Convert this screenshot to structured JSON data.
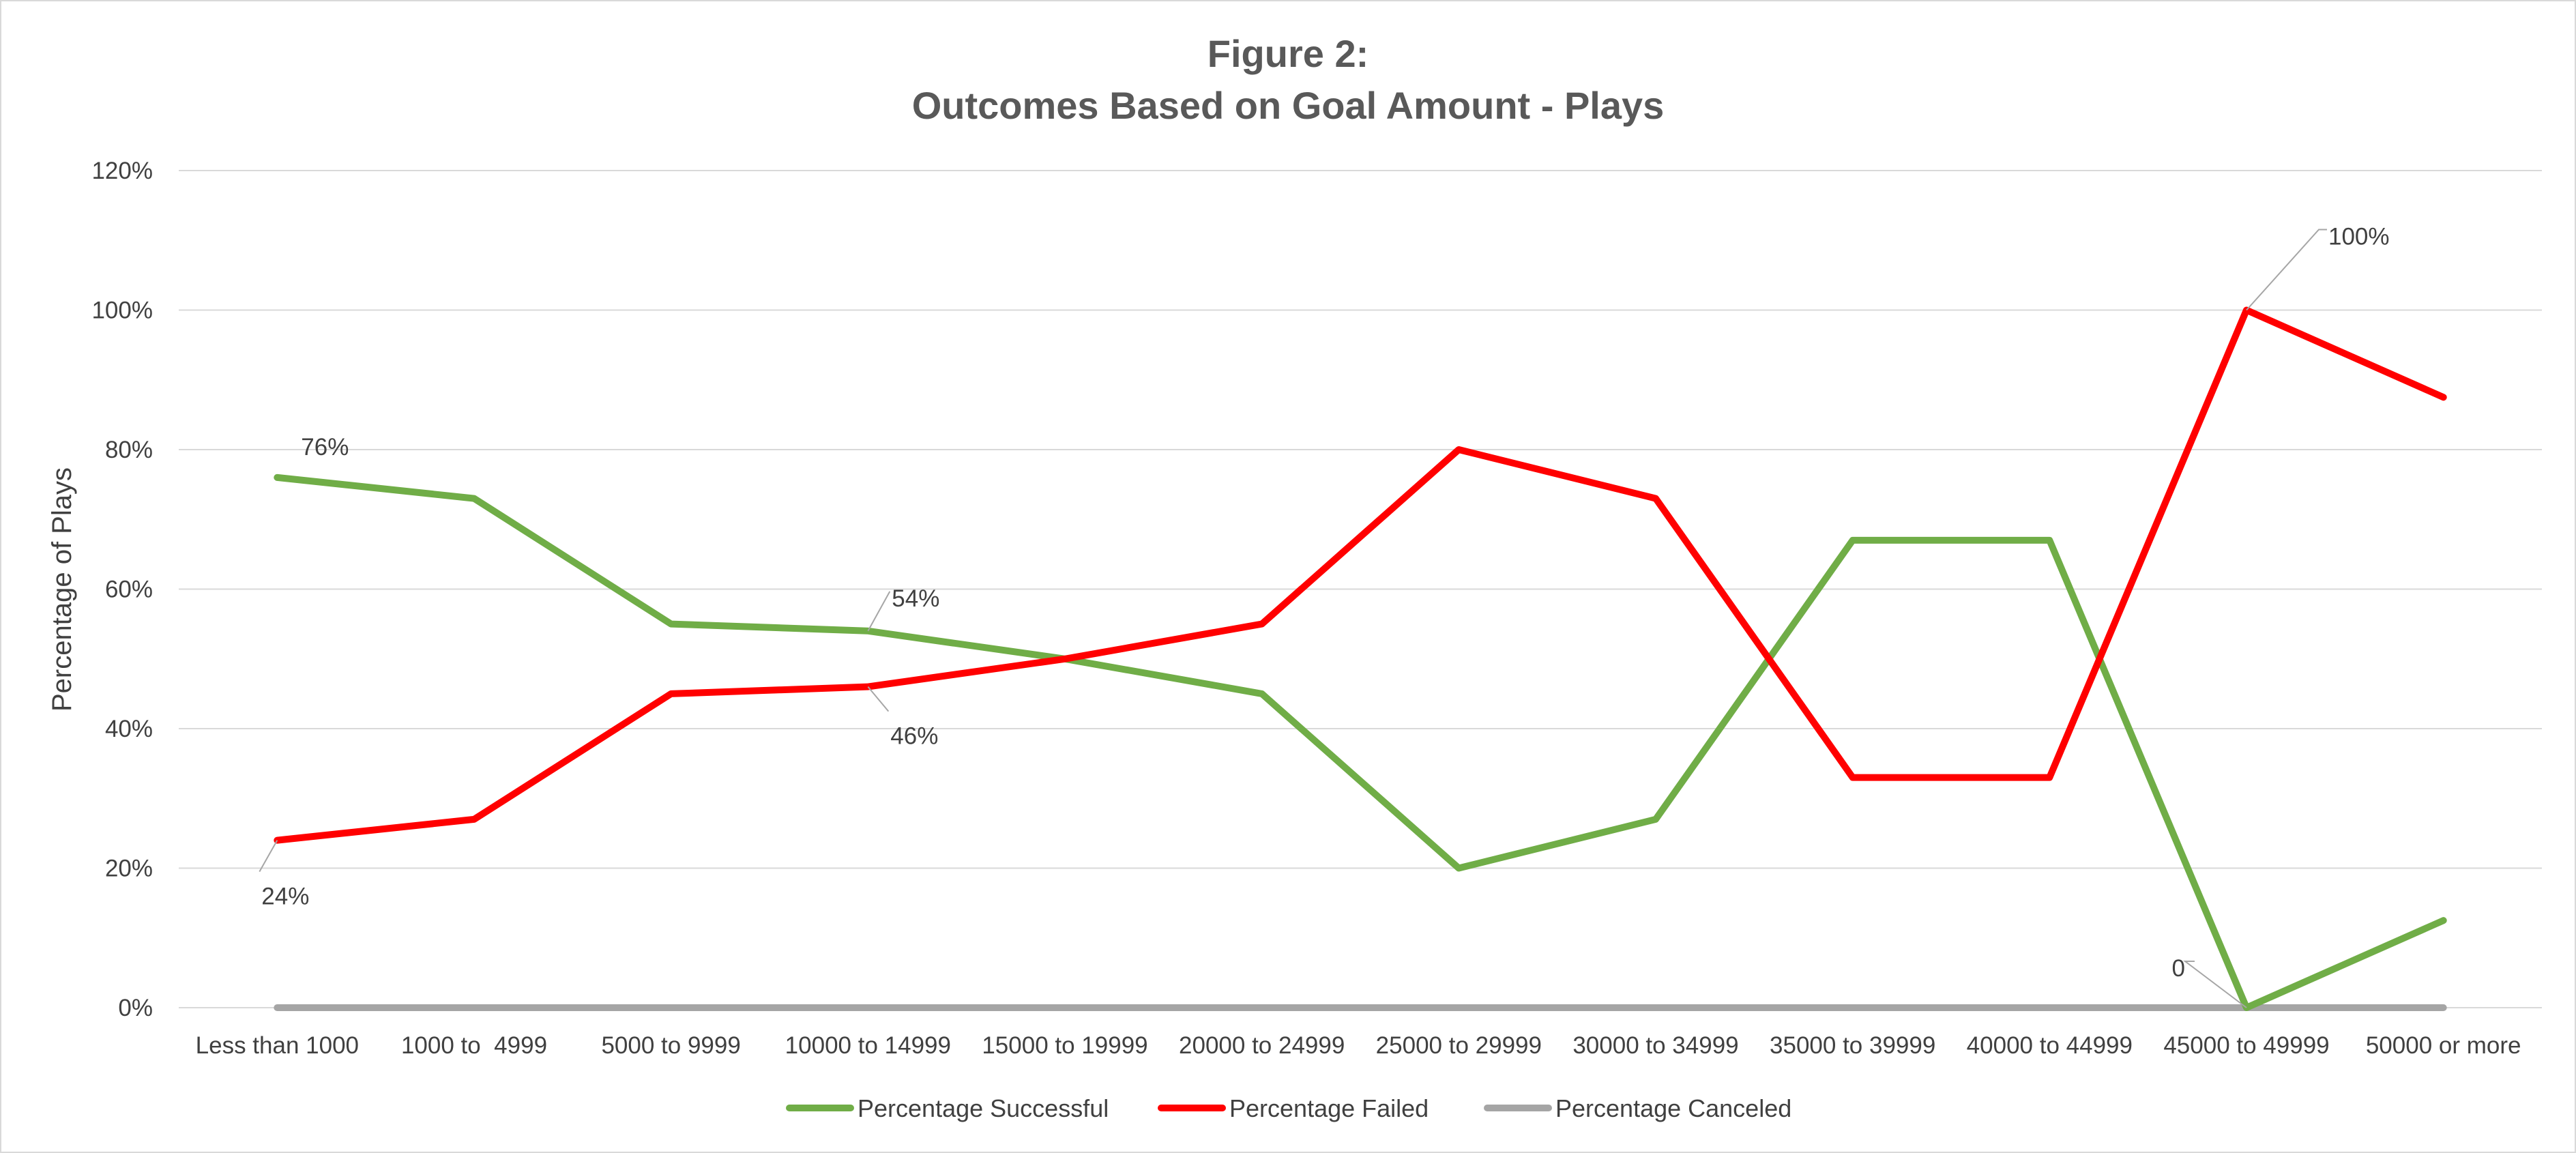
{
  "chart_data": {
    "type": "line",
    "title": "Figure 2:",
    "subtitle": "Outcomes Based on Goal Amount - Plays",
    "xlabel": "",
    "ylabel": "Percentage of Plays",
    "categories": [
      "Less than 1000",
      "1000 to  4999",
      "5000 to 9999",
      "10000 to 14999",
      "15000 to 19999",
      "20000 to 24999",
      "25000 to 29999",
      "30000 to 34999",
      "35000 to 39999",
      "40000 to 44999",
      "45000 to 49999",
      "50000 or more"
    ],
    "ylim": [
      0,
      1.2
    ],
    "y_ticks": [
      0,
      0.2,
      0.4,
      0.6,
      0.8,
      1.0,
      1.2
    ],
    "y_tick_labels": [
      "0%",
      "20%",
      "40%",
      "60%",
      "80%",
      "100%",
      "120%"
    ],
    "grid": true,
    "legend_position": "bottom",
    "series": [
      {
        "name": "Percentage Successful",
        "color": "#70ad47",
        "values": [
          0.76,
          0.73,
          0.55,
          0.54,
          0.5,
          0.45,
          0.2,
          0.27,
          0.67,
          0.67,
          0.0,
          0.125
        ]
      },
      {
        "name": "Percentage Failed",
        "color": "#ff0000",
        "values": [
          0.24,
          0.27,
          0.45,
          0.46,
          0.5,
          0.55,
          0.8,
          0.73,
          0.33,
          0.33,
          1.0,
          0.875
        ]
      },
      {
        "name": "Percentage Canceled",
        "color": "#a5a5a5",
        "values": [
          0,
          0,
          0,
          0,
          0,
          0,
          0,
          0,
          0,
          0,
          0,
          0
        ]
      }
    ],
    "annotations": [
      {
        "series": 0,
        "index": 0,
        "text": "76%"
      },
      {
        "series": 1,
        "index": 0,
        "text": "24%"
      },
      {
        "series": 0,
        "index": 3,
        "text": "54%"
      },
      {
        "series": 1,
        "index": 3,
        "text": "46%"
      },
      {
        "series": 1,
        "index": 10,
        "text": "100%"
      },
      {
        "series": 0,
        "index": 10,
        "text": "0"
      }
    ]
  }
}
